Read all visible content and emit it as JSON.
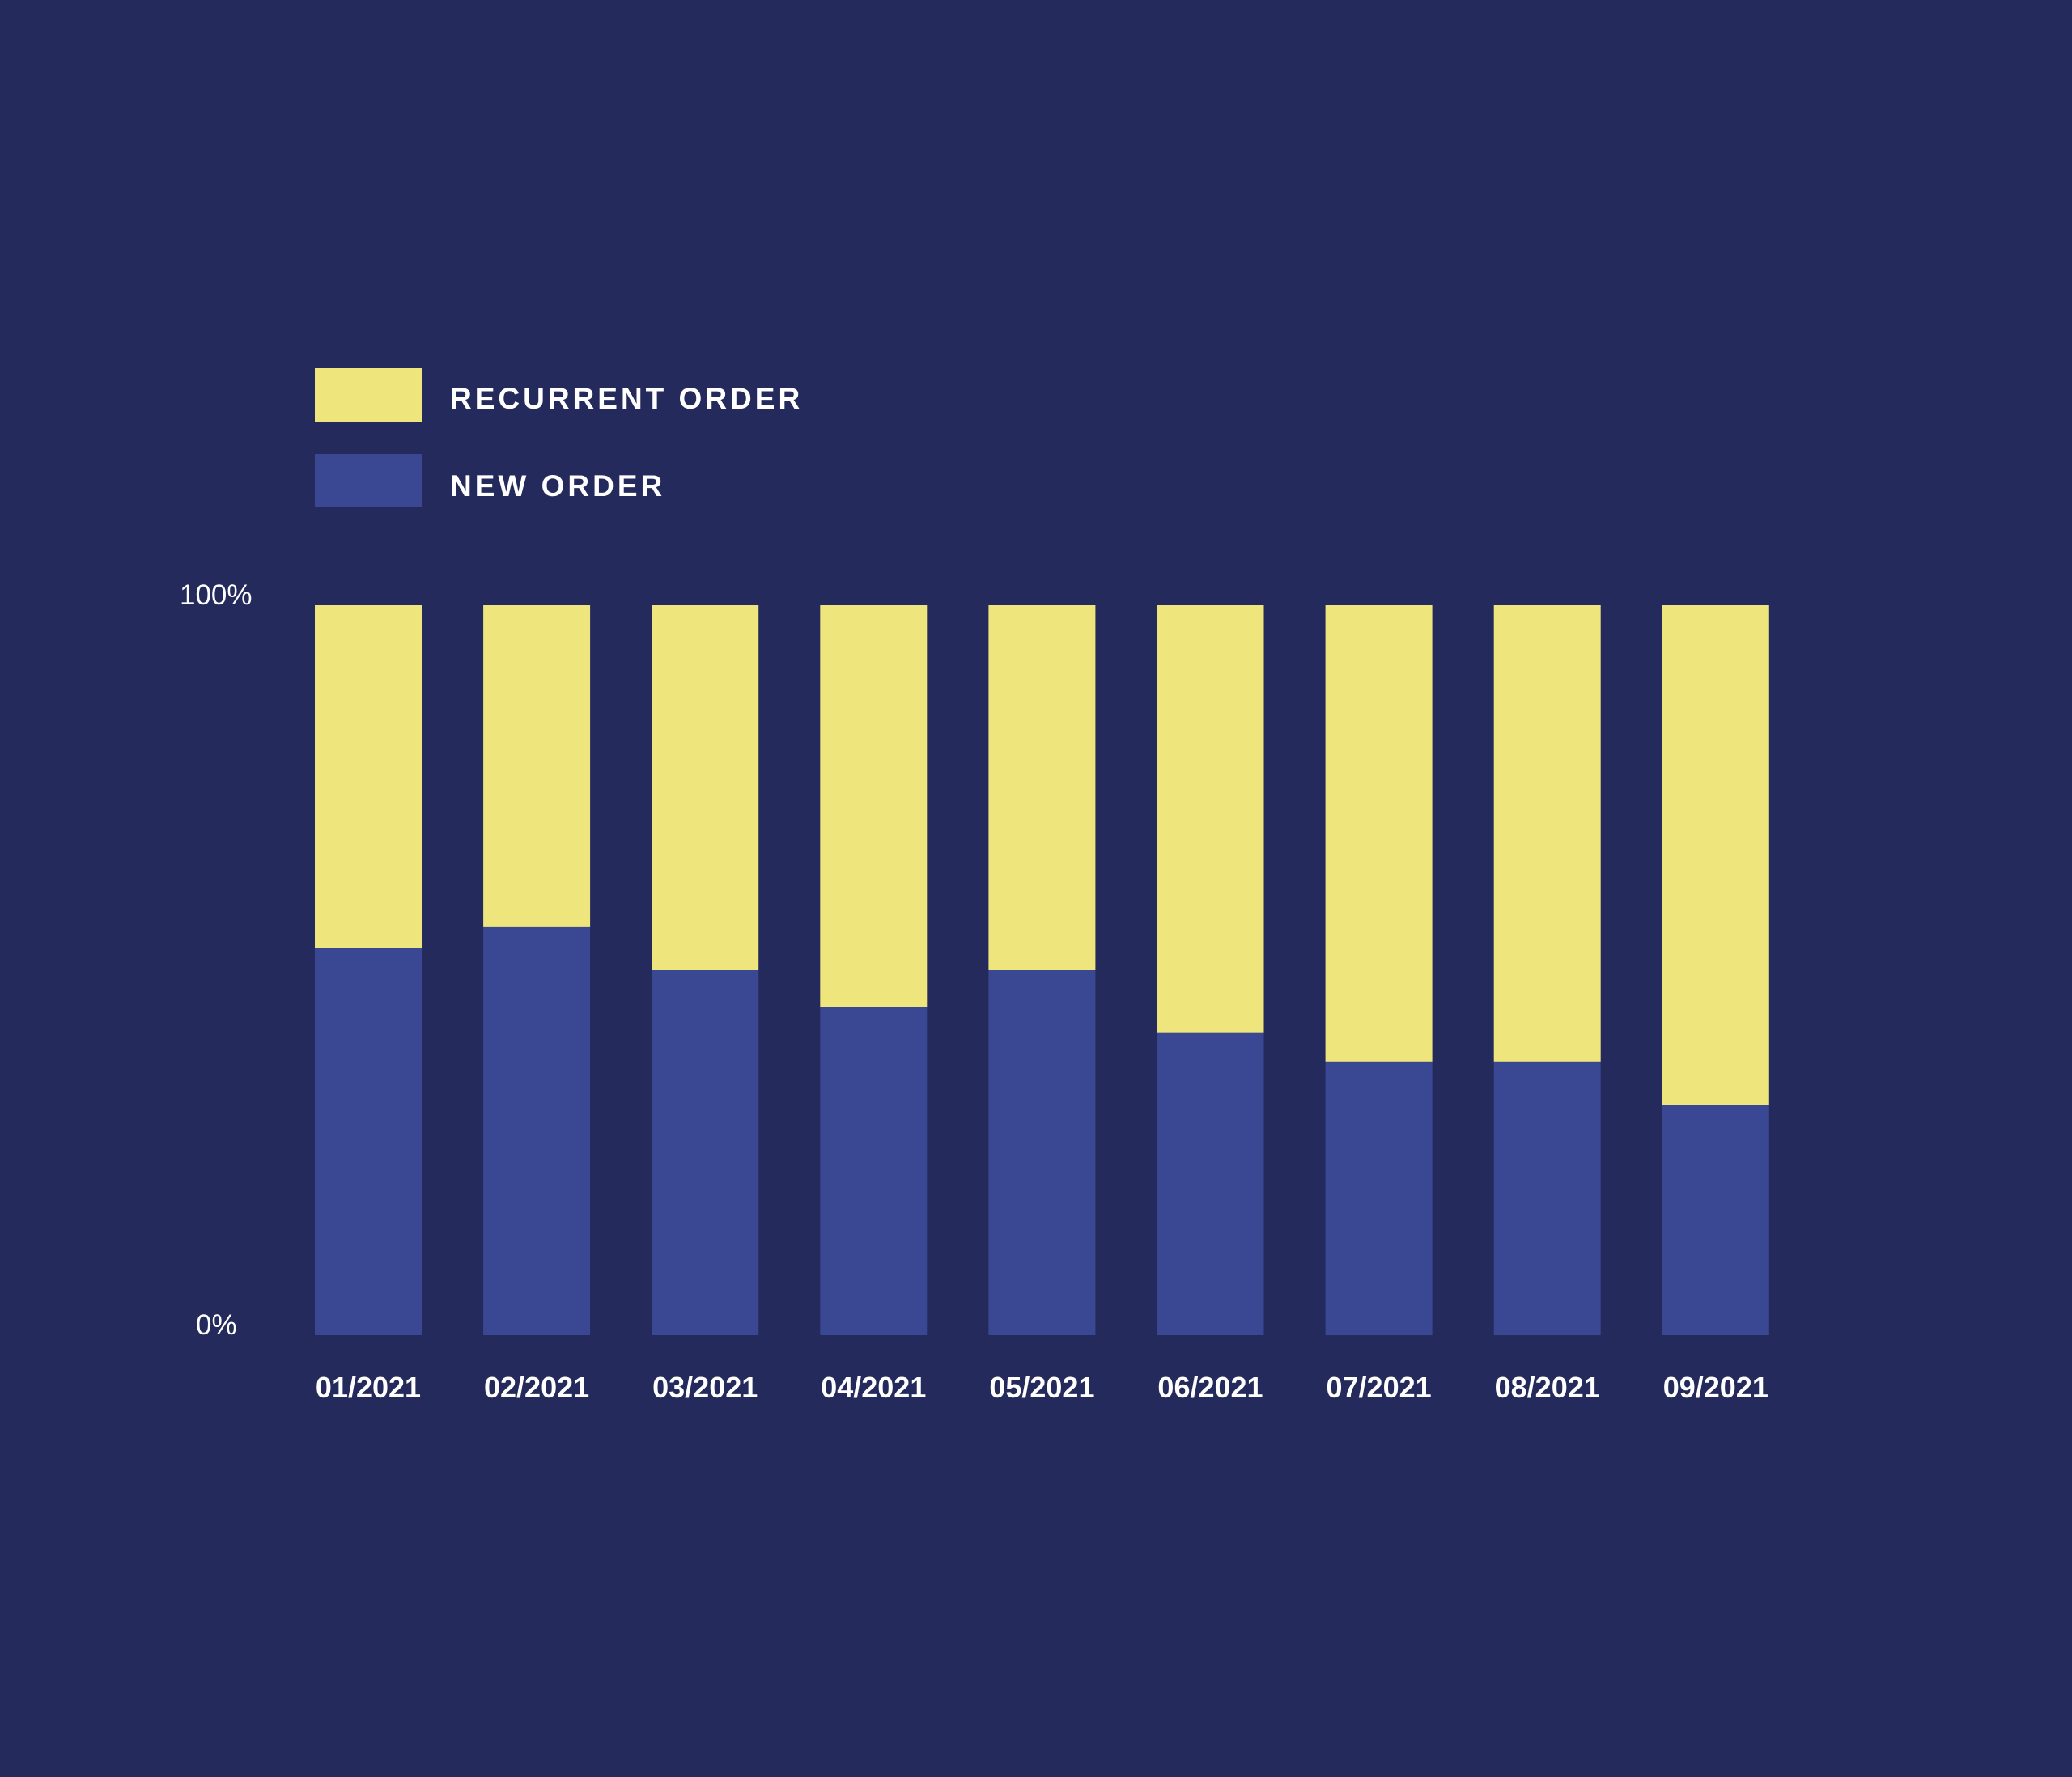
{
  "colors": {
    "background": "#242a5b",
    "recurrent": "#eee57d",
    "new": "#3a4893",
    "text": "#ffffff"
  },
  "legend": {
    "recurrent_label": "RECURRENT ORDER",
    "new_label": "NEW ORDER"
  },
  "axis": {
    "y_max_label": "100%",
    "y_min_label": "0%"
  },
  "chart_data": {
    "type": "bar",
    "stacked": true,
    "categories": [
      "01/2021",
      "02/2021",
      "03/2021",
      "04/2021",
      "05/2021",
      "06/2021",
      "07/2021",
      "08/2021",
      "09/2021"
    ],
    "series": [
      {
        "name": "NEW ORDER",
        "color": "#3a4893",
        "values": [
          53,
          56,
          50,
          45,
          50,
          41.5,
          37.5,
          37.5,
          31.5
        ]
      },
      {
        "name": "RECURRENT ORDER",
        "color": "#eee57d",
        "values": [
          47,
          44,
          50,
          55,
          50,
          58.5,
          62.5,
          62.5,
          68.5
        ]
      }
    ],
    "ylim": [
      0,
      100
    ],
    "y_tick_labels": [
      "0%",
      "100%"
    ],
    "legend_position": "top-left",
    "grid": false
  }
}
